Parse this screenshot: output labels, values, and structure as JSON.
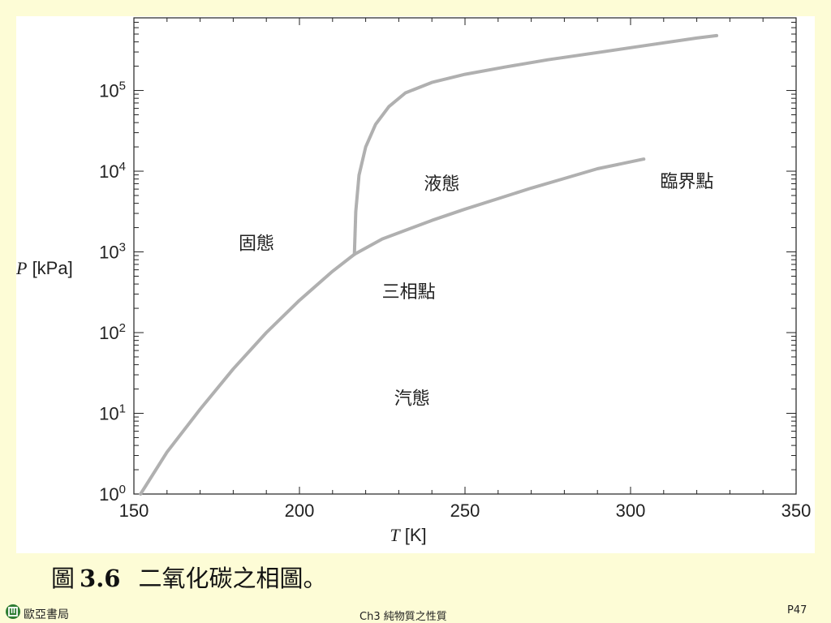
{
  "chart_data": {
    "type": "line",
    "xlabel_var": "T",
    "xlabel_unit": "[K]",
    "ylabel_var": "P",
    "ylabel_unit": "[kPa]",
    "x_ticks": [
      "150",
      "200",
      "250",
      "300",
      "350"
    ],
    "xlim": [
      150,
      350
    ],
    "y_scale": "log",
    "ylim_exponent": [
      0,
      5.9
    ],
    "y_tick_base": "10",
    "y_ticks": [
      "0",
      "1",
      "2",
      "3",
      "4",
      "5"
    ],
    "line_color": "#b0b0b0",
    "series": [
      {
        "x": [
          152,
          160,
          170,
          180,
          190,
          200,
          210,
          216.6
        ],
        "log10_y": [
          0.0,
          0.52,
          1.05,
          1.55,
          2.0,
          2.4,
          2.76,
          2.97
        ]
      },
      {
        "x": [
          216.6,
          225,
          240,
          250,
          260,
          270,
          280,
          290,
          304
        ],
        "log10_y": [
          2.97,
          3.16,
          3.39,
          3.53,
          3.66,
          3.79,
          3.91,
          4.03,
          4.15
        ]
      },
      {
        "x": [
          216.6,
          217,
          218,
          220,
          223,
          227,
          232,
          240,
          250,
          262,
          275,
          290,
          305,
          320,
          326
        ],
        "log10_y": [
          2.97,
          3.5,
          3.95,
          4.3,
          4.58,
          4.8,
          4.97,
          5.1,
          5.2,
          5.29,
          5.38,
          5.47,
          5.56,
          5.65,
          5.68
        ]
      }
    ],
    "annotations": [
      {
        "id": "solid",
        "text": "固態",
        "x": 187,
        "log10_y": 3.09
      },
      {
        "id": "liquid",
        "text": "液態",
        "x": 243,
        "log10_y": 3.83
      },
      {
        "id": "critical",
        "text": "臨界點",
        "x": 317,
        "log10_y": 3.86
      },
      {
        "id": "triple",
        "text": "三相點",
        "x": 233,
        "log10_y": 2.49
      },
      {
        "id": "vapor",
        "text": "汽態",
        "x": 234,
        "log10_y": 1.17
      }
    ]
  },
  "caption": {
    "prefix": "圖",
    "number": "3.6",
    "text": "二氧化碳之相圖。"
  },
  "footer": {
    "publisher": "歐亞書局",
    "chapter": "Ch3 純物質之性質",
    "page": "P47"
  }
}
